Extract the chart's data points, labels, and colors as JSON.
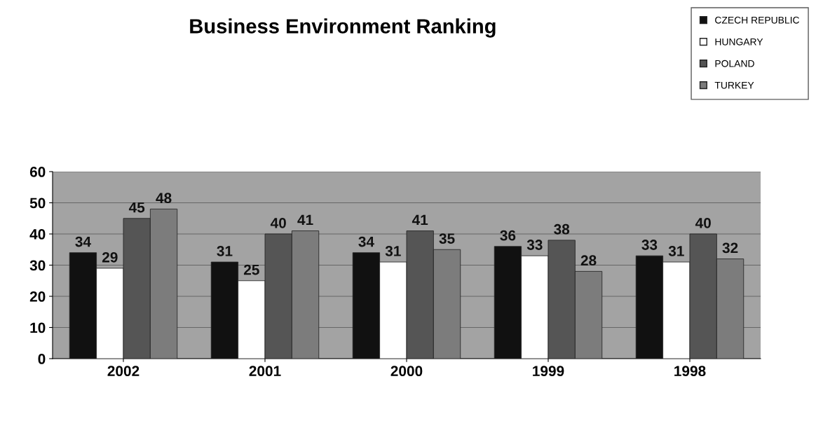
{
  "chart_data": {
    "type": "bar",
    "title": "Business Environment Ranking",
    "categories": [
      "2002",
      "2001",
      "2000",
      "1999",
      "1998"
    ],
    "series": [
      {
        "name": "CZECH REPUBLIC",
        "color": "#111111",
        "values": [
          34,
          31,
          34,
          36,
          33
        ]
      },
      {
        "name": "HUNGARY",
        "color": "#ffffff",
        "values": [
          29,
          25,
          31,
          33,
          31
        ]
      },
      {
        "name": "POLAND",
        "color": "#555555",
        "values": [
          45,
          40,
          41,
          38,
          40
        ]
      },
      {
        "name": "TURKEY",
        "color": "#7c7c7c",
        "values": [
          48,
          41,
          35,
          28,
          32
        ]
      }
    ],
    "ylim": [
      0,
      60
    ],
    "yticks": [
      0,
      10,
      20,
      30,
      40,
      50,
      60
    ],
    "grid": "y",
    "legend": "top right",
    "data_labels": true
  }
}
